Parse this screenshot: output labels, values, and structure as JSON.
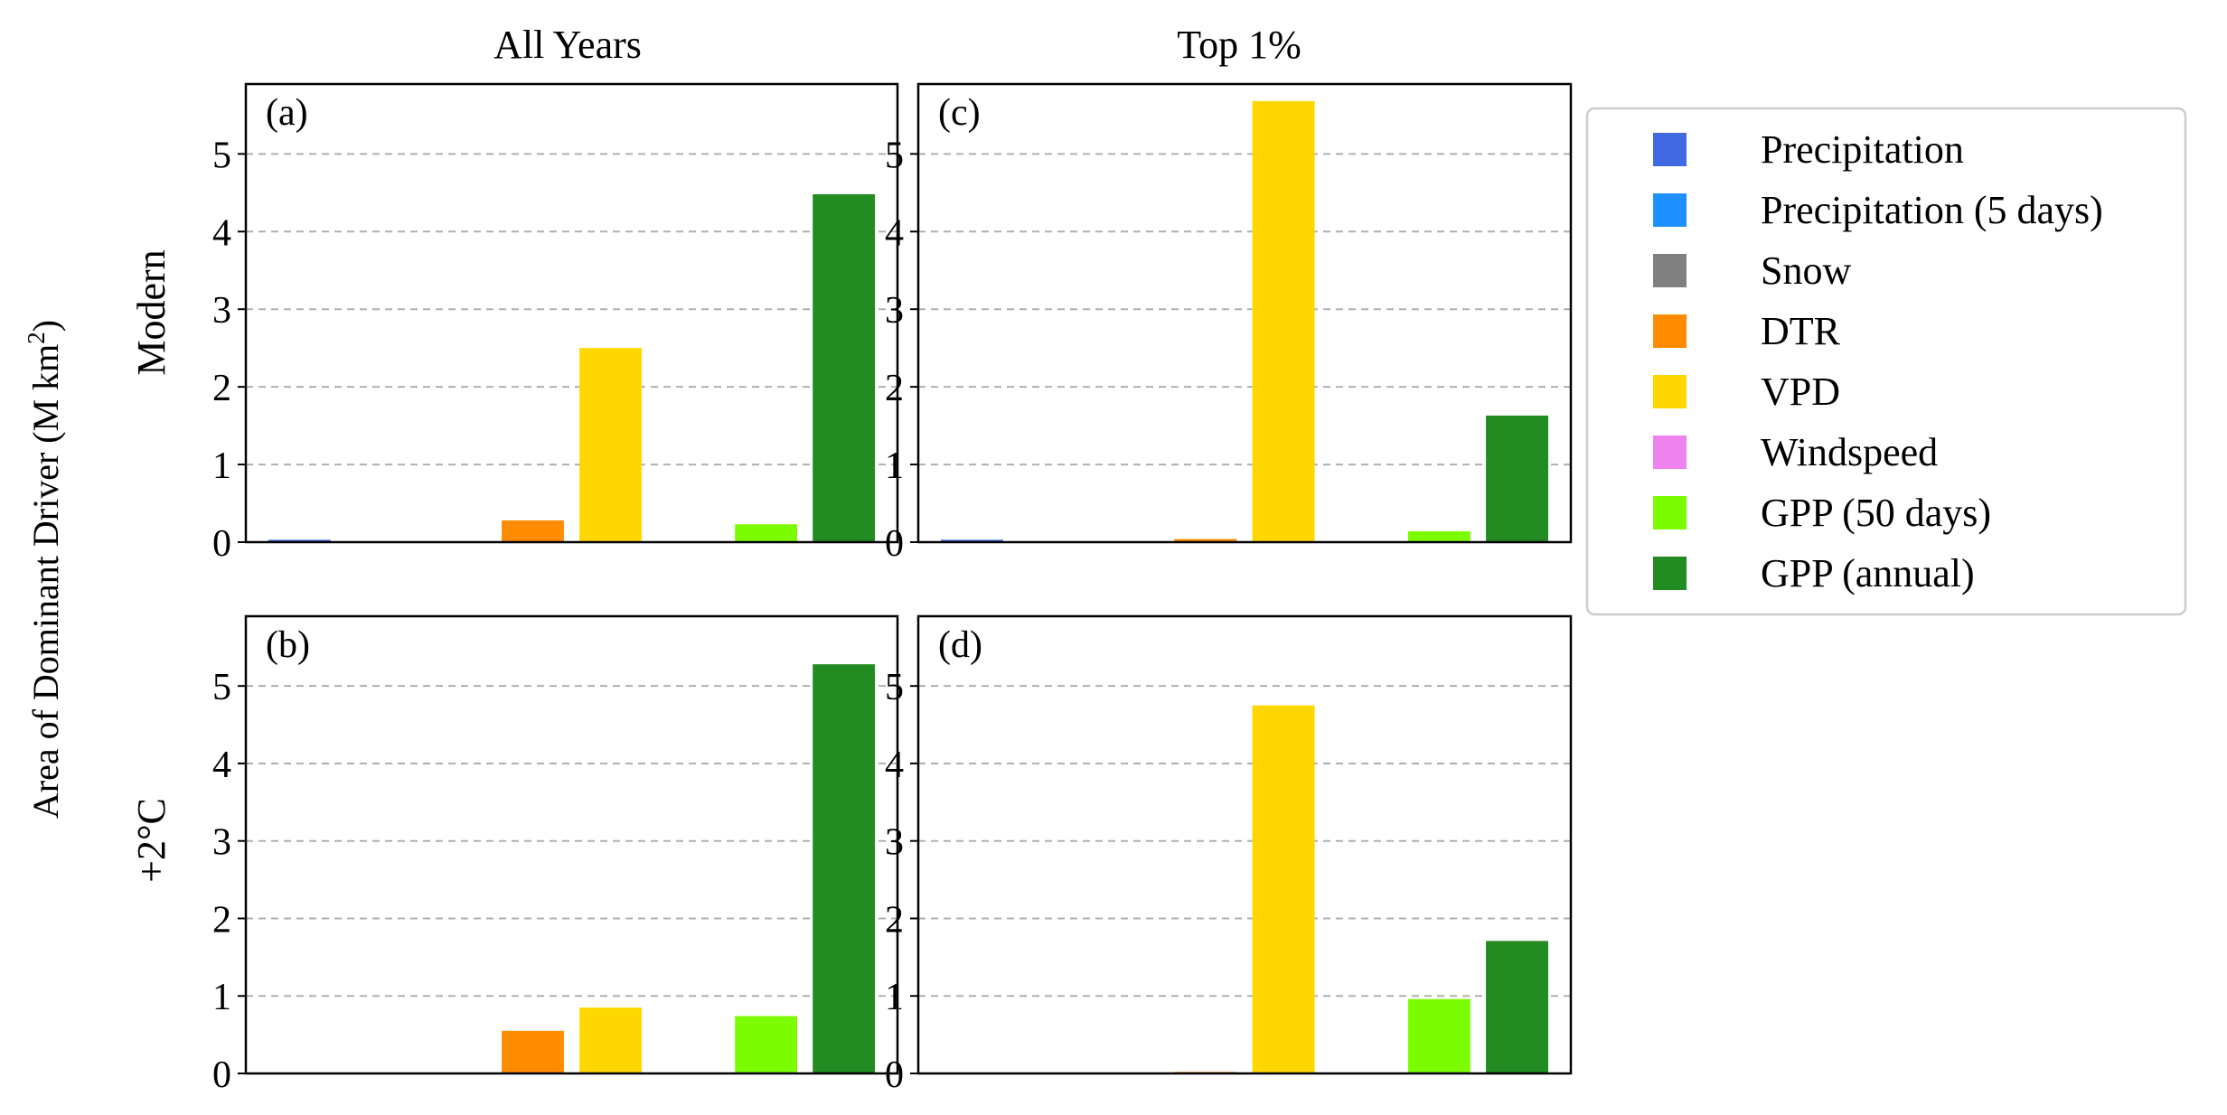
{
  "figure": {
    "ylabel": "Area of Dominant Driver (M km",
    "ylabel_sup": "2",
    "ylabel_close": ")",
    "col_titles": [
      "All Years",
      "Top 1%"
    ],
    "row_labels": [
      "Modern",
      "+2°C"
    ]
  },
  "legend": [
    {
      "label": "Precipitation",
      "color": "#4169E1"
    },
    {
      "label": "Precipitation (5 days)",
      "color": "#1E90FF"
    },
    {
      "label": "Snow",
      "color": "#808080"
    },
    {
      "label": "DTR",
      "color": "#FF8C00"
    },
    {
      "label": "VPD",
      "color": "#FFD700"
    },
    {
      "label": "Windspeed",
      "color": "#EE82EE"
    },
    {
      "label": "GPP (50 days)",
      "color": "#7CFC00"
    },
    {
      "label": "GPP (annual)",
      "color": "#228B22"
    }
  ],
  "chart_data": [
    {
      "type": "bar",
      "panel": "(a)",
      "categories": [
        "Precipitation",
        "Precipitation (5 days)",
        "Snow",
        "DTR",
        "VPD",
        "Windspeed",
        "GPP (50 days)",
        "GPP (annual)"
      ],
      "values": [
        0.03,
        0,
        0,
        0.28,
        2.5,
        0,
        0.23,
        4.48
      ],
      "ylim": [
        0,
        5.9
      ],
      "yticks": [
        "0",
        "1",
        "2",
        "3",
        "4",
        "5"
      ],
      "grid": "y-dashed"
    },
    {
      "type": "bar",
      "panel": "(c)",
      "categories": [
        "Precipitation",
        "Precipitation (5 days)",
        "Snow",
        "DTR",
        "VPD",
        "Windspeed",
        "GPP (50 days)",
        "GPP (annual)"
      ],
      "values": [
        0.03,
        0,
        0,
        0.04,
        5.68,
        0,
        0.14,
        1.63
      ],
      "ylim": [
        0,
        5.9
      ],
      "yticks": [
        "0",
        "1",
        "2",
        "3",
        "4",
        "5"
      ],
      "grid": "y-dashed"
    },
    {
      "type": "bar",
      "panel": "(b)",
      "categories": [
        "Precipitation",
        "Precipitation (5 days)",
        "Snow",
        "DTR",
        "VPD",
        "Windspeed",
        "GPP (50 days)",
        "GPP (annual)"
      ],
      "values": [
        0,
        0,
        0,
        0.55,
        0.85,
        0,
        0.74,
        5.28
      ],
      "ylim": [
        0,
        5.9
      ],
      "yticks": [
        "0",
        "1",
        "2",
        "3",
        "4",
        "5"
      ],
      "grid": "y-dashed"
    },
    {
      "type": "bar",
      "panel": "(d)",
      "categories": [
        "Precipitation",
        "Precipitation (5 days)",
        "Snow",
        "DTR",
        "VPD",
        "Windspeed",
        "GPP (50 days)",
        "GPP (annual)"
      ],
      "values": [
        0,
        0,
        0,
        0.02,
        4.75,
        0,
        0.96,
        1.71
      ],
      "ylim": [
        0,
        5.9
      ],
      "yticks": [
        "0",
        "1",
        "2",
        "3",
        "4",
        "5"
      ],
      "grid": "y-dashed"
    }
  ]
}
